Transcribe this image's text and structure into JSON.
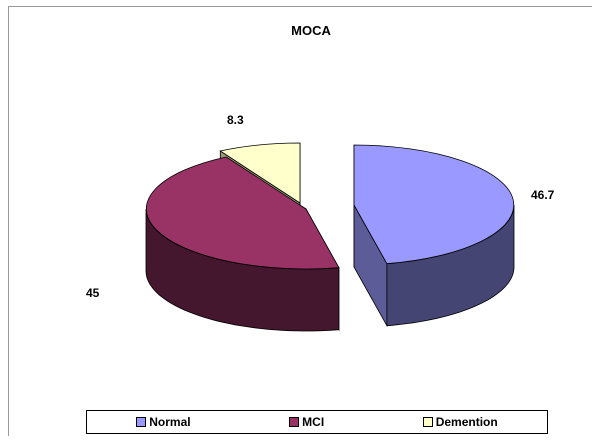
{
  "chart_data": {
    "type": "pie",
    "title": "MOCA",
    "style": "3d-exploded",
    "series": [
      {
        "name": "Normal",
        "value": 46.7,
        "label": "46.7",
        "color": "#9999ff"
      },
      {
        "name": "MCI",
        "value": 45,
        "label": "45",
        "color": "#993366"
      },
      {
        "name": "Demention",
        "value": 8.3,
        "label": "8.3",
        "color": "#ffffcc"
      }
    ],
    "legend_position": "bottom"
  }
}
